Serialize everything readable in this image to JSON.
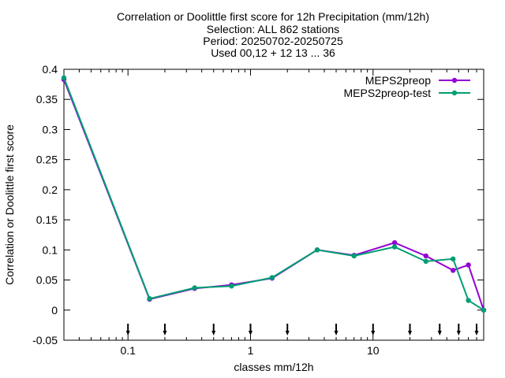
{
  "chart_data": {
    "type": "line",
    "title": [
      "Correlation or Doolittle first score  for 12h Precipitation (mm/12h)",
      "Selection: ALL    862 stations",
      "Period: 20250702-20250725",
      "Used 00,12 + 12 13 ... 36"
    ],
    "xlabel": "classes mm/12h",
    "ylabel": "Correlation or Doolittle first score",
    "xscale": "log",
    "xlim": [
      0.03,
      80
    ],
    "ylim": [
      -0.05,
      0.4
    ],
    "xticks": [
      {
        "value": 0.1,
        "label": "0.1"
      },
      {
        "value": 1,
        "label": "1"
      },
      {
        "value": 10,
        "label": "10"
      }
    ],
    "yticks": [
      {
        "value": -0.05,
        "label": "-0.05"
      },
      {
        "value": 0,
        "label": "0"
      },
      {
        "value": 0.05,
        "label": "0.05"
      },
      {
        "value": 0.1,
        "label": "0.1"
      },
      {
        "value": 0.15,
        "label": "0.15"
      },
      {
        "value": 0.2,
        "label": "0.2"
      },
      {
        "value": 0.25,
        "label": "0.25"
      },
      {
        "value": 0.3,
        "label": "0.3"
      },
      {
        "value": 0.35,
        "label": "0.35"
      },
      {
        "value": 0.4,
        "label": "0.4"
      }
    ],
    "threshold_arrows": [
      0.1,
      0.2,
      0.5,
      1,
      2,
      5,
      10,
      20,
      35,
      50,
      70
    ],
    "grid": false,
    "legend_position": "top-right",
    "series": [
      {
        "name": "MEPS2preop",
        "color": "#9400d3",
        "x": [
          0.03,
          0.15,
          0.35,
          0.7,
          1.5,
          3.5,
          7,
          15,
          27,
          45,
          60,
          80
        ],
        "y": [
          0.383,
          0.018,
          0.036,
          0.042,
          0.053,
          0.1,
          0.091,
          0.112,
          0.09,
          0.066,
          0.075,
          0.0
        ]
      },
      {
        "name": "MEPS2preop-test",
        "color": "#009e73",
        "x": [
          0.03,
          0.15,
          0.35,
          0.7,
          1.5,
          3.5,
          7,
          15,
          27,
          45,
          60,
          80
        ],
        "y": [
          0.386,
          0.019,
          0.037,
          0.04,
          0.054,
          0.1,
          0.09,
          0.105,
          0.081,
          0.085,
          0.016,
          0.0
        ]
      }
    ]
  }
}
